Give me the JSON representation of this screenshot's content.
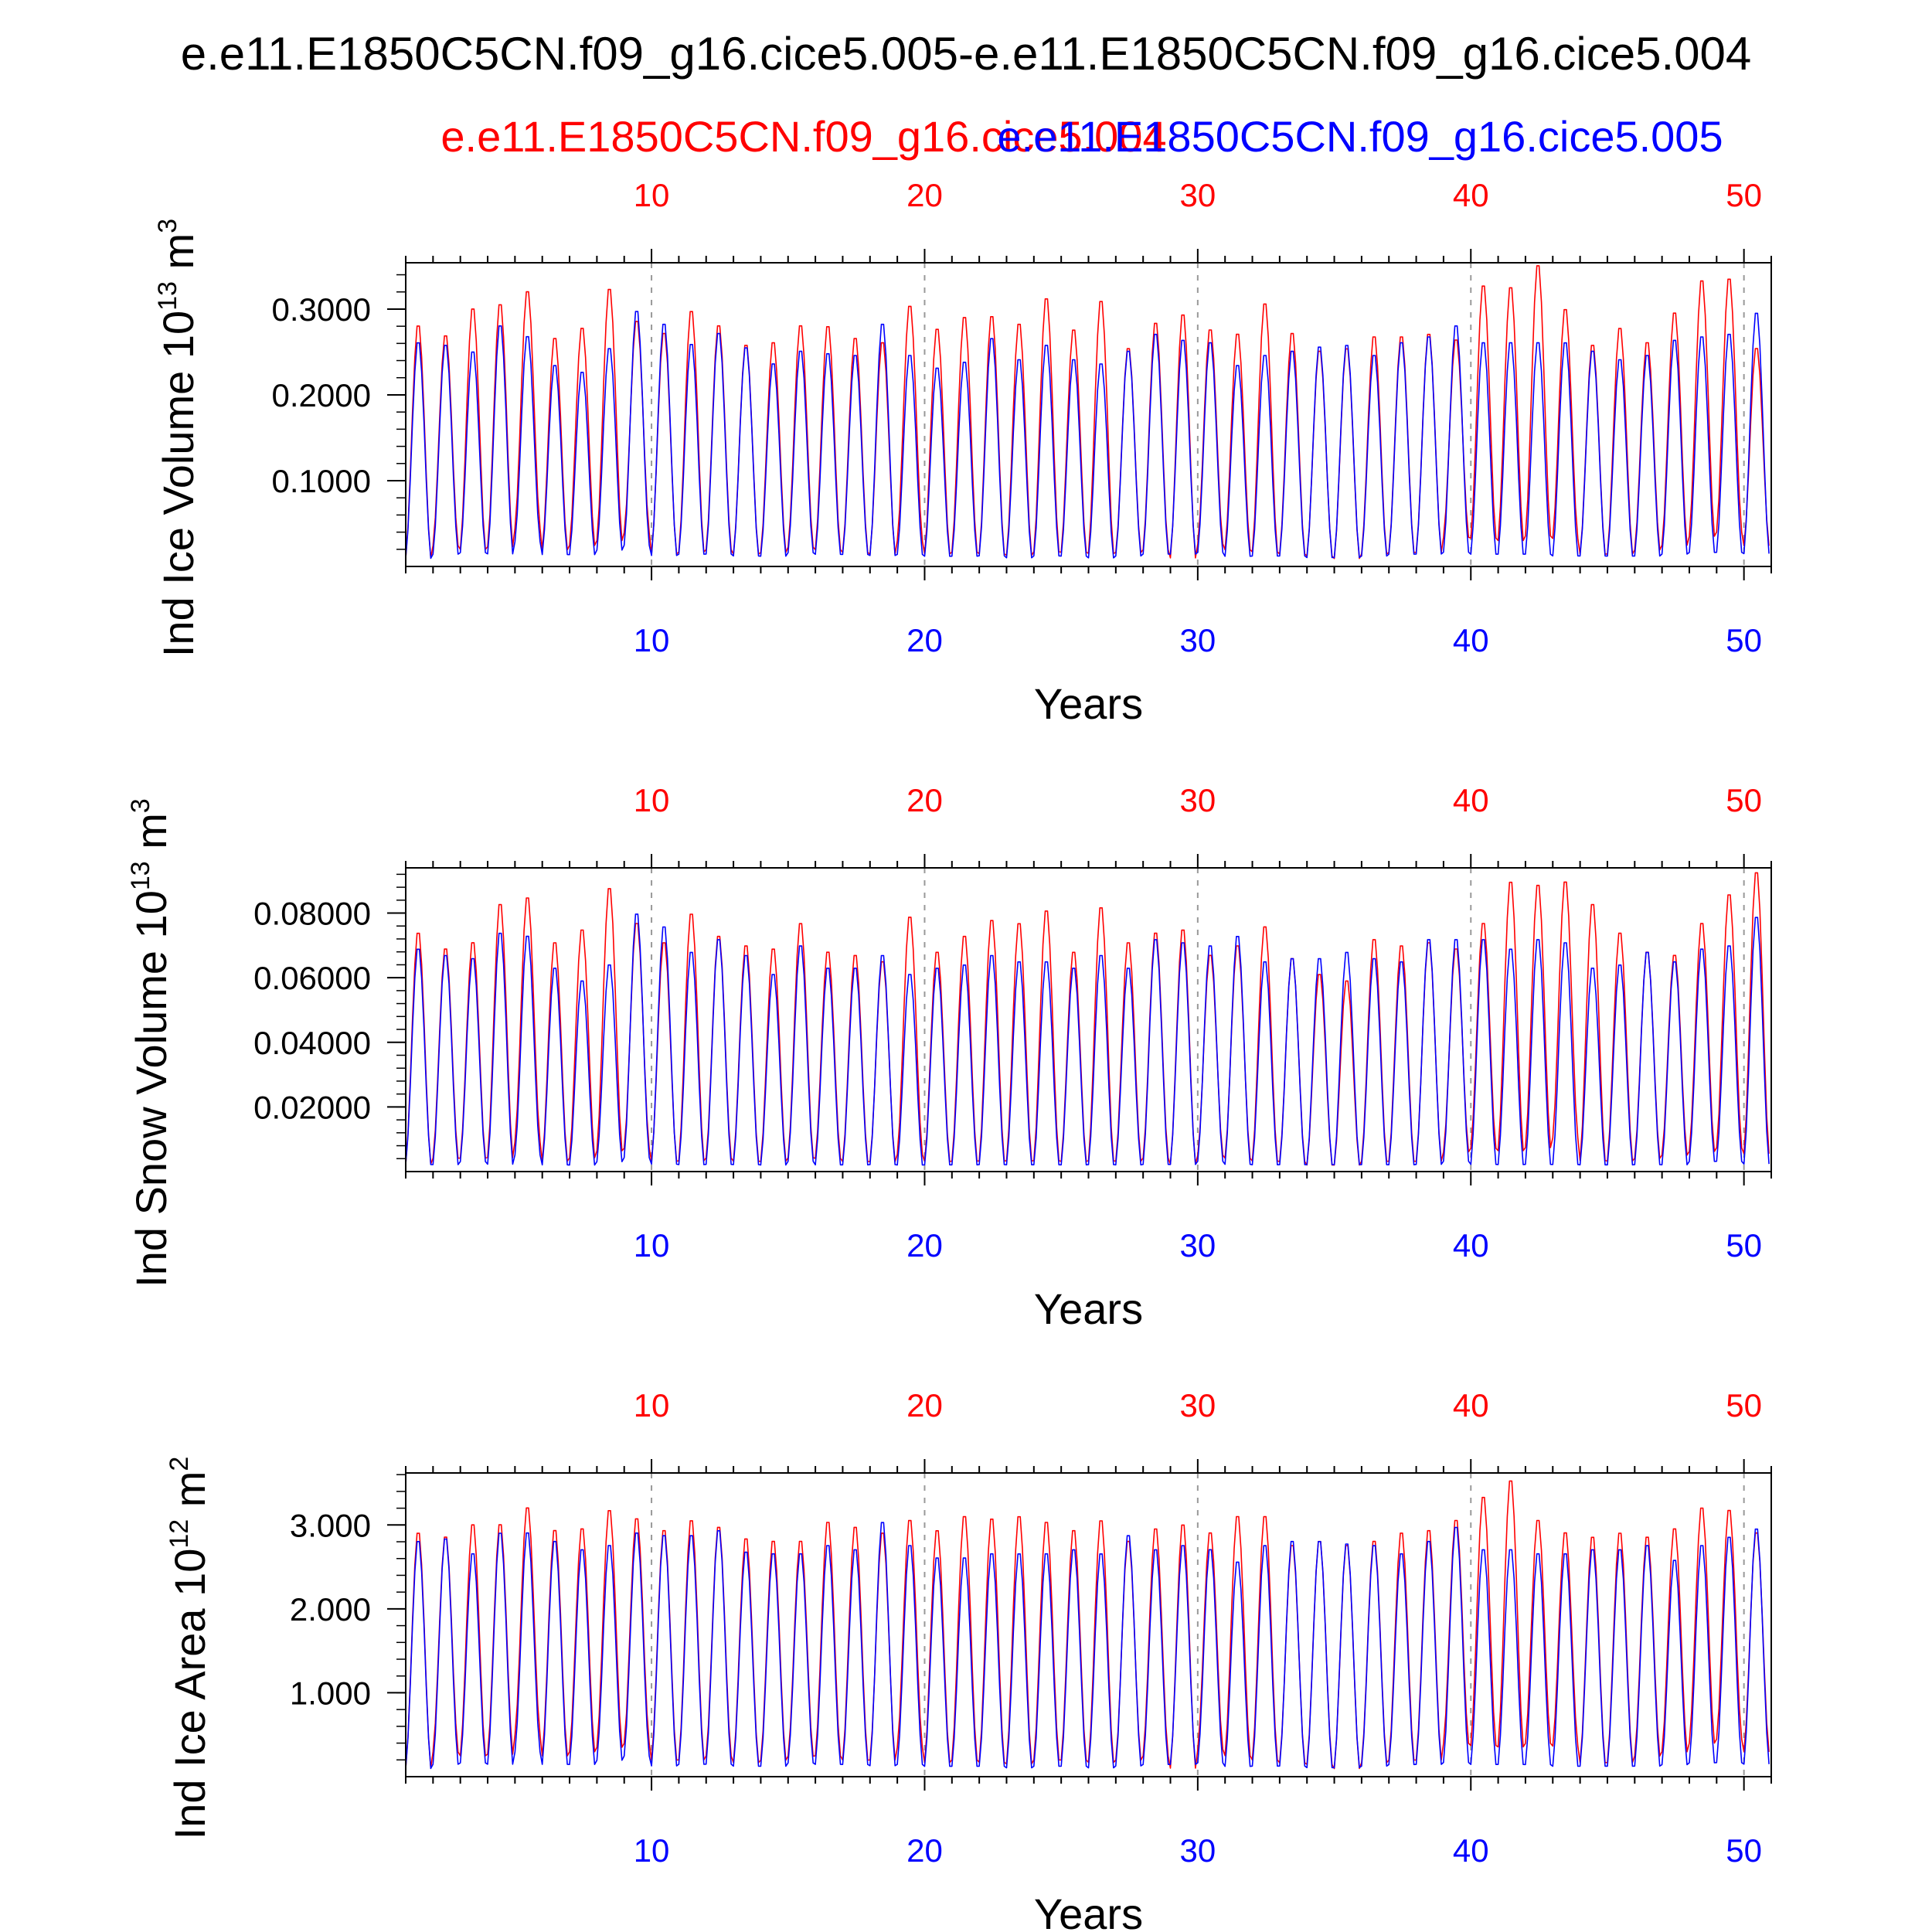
{
  "title": "e.e11.E1850C5CN.f09_g16.cice5.005-e.e11.E1850C5CN.f09_g16.cice5.004",
  "legend": {
    "red": "e.e11.E1850C5CN.f09_g16.cice5.004",
    "blue": "e.e11.E1850C5CN.f09_g16.cice5.005"
  },
  "colors": {
    "red": "#ff0000",
    "blue": "#0000ff",
    "axis": "#000000",
    "grid": "#999999"
  },
  "chart_data": [
    {
      "type": "line",
      "ylabel_main": "Ind Ice Volume 10",
      "ylabel_exp": "13",
      "ylabel_unit": " m",
      "ylabel_unit_exp": "3",
      "xlabel": "Years",
      "xlim": [
        1,
        51
      ],
      "ylim": [
        0,
        0.354
      ],
      "yticks": [
        0.1,
        0.2,
        0.3
      ],
      "ytick_labels": [
        "0.1000",
        "0.2000",
        "0.3000"
      ],
      "xticks": [
        10,
        20,
        30,
        40,
        50
      ],
      "xtick_labels": [
        "10",
        "20",
        "30",
        "40",
        "50"
      ],
      "series": [
        {
          "name": "e.e11.E1850C5CN.f09_g16.cice5.004",
          "color": "red",
          "annual_max": [
            0.285,
            0.273,
            0.305,
            0.31,
            0.325,
            0.27,
            0.282,
            0.328,
            0.29,
            0.276,
            0.302,
            0.285,
            0.262,
            0.265,
            0.285,
            0.284,
            0.27,
            0.265,
            0.308,
            0.281,
            0.295,
            0.296,
            0.287,
            0.317,
            0.28,
            0.314,
            0.258,
            0.288,
            0.298,
            0.28,
            0.275,
            0.311,
            0.276,
            0.255,
            0.258,
            0.272,
            0.272,
            0.275,
            0.268,
            0.332,
            0.33,
            0.356,
            0.304,
            0.262,
            0.282,
            0.265,
            0.3,
            0.338,
            0.34,
            0.258
          ],
          "annual_min": [
            0.005,
            0.02,
            0.015,
            0.018,
            0.04,
            0.015,
            0.02,
            0.025,
            0.035,
            0.01,
            0.012,
            0.015,
            0.01,
            0.012,
            0.018,
            0.015,
            0.012,
            0.01,
            0.025,
            0.01,
            0.012,
            0.01,
            0.008,
            0.012,
            0.012,
            0.01,
            0.012,
            0.015,
            0.005,
            0.022,
            0.015,
            0.012,
            0.01,
            0.008,
            0.005,
            0.01,
            0.012,
            0.012,
            0.03,
            0.028,
            0.025,
            0.03,
            0.028,
            0.01,
            0.01,
            0.015,
            0.02,
            0.03,
            0.035,
            0.02
          ]
        },
        {
          "name": "e.e11.E1850C5CN.f09_g16.cice5.005",
          "color": "blue",
          "annual_max": [
            0.265,
            0.262,
            0.254,
            0.285,
            0.272,
            0.238,
            0.23,
            0.258,
            0.302,
            0.287,
            0.263,
            0.276,
            0.259,
            0.24,
            0.255,
            0.252,
            0.25,
            0.287,
            0.25,
            0.235,
            0.242,
            0.27,
            0.245,
            0.262,
            0.245,
            0.24,
            0.255,
            0.275,
            0.268,
            0.265,
            0.238,
            0.25,
            0.255,
            0.26,
            0.262,
            0.25,
            0.265,
            0.272,
            0.285,
            0.265,
            0.265,
            0.265,
            0.265,
            0.255,
            0.245,
            0.25,
            0.268,
            0.272,
            0.275,
            0.3
          ],
          "annual_min": [
            0.005,
            0.01,
            0.012,
            0.01,
            0.025,
            0.01,
            0.01,
            0.015,
            0.02,
            0.008,
            0.01,
            0.01,
            0.008,
            0.008,
            0.012,
            0.01,
            0.01,
            0.008,
            0.01,
            0.008,
            0.008,
            0.008,
            0.006,
            0.008,
            0.008,
            0.006,
            0.008,
            0.01,
            0.01,
            0.012,
            0.008,
            0.008,
            0.008,
            0.006,
            0.006,
            0.008,
            0.01,
            0.01,
            0.012,
            0.01,
            0.01,
            0.01,
            0.008,
            0.008,
            0.008,
            0.008,
            0.01,
            0.012,
            0.012,
            0.01
          ]
        }
      ]
    },
    {
      "type": "line",
      "ylabel_main": "Ind Snow Volume 10",
      "ylabel_exp": "13",
      "ylabel_unit": " m",
      "ylabel_unit_exp": "3",
      "xlabel": "Years",
      "xlim": [
        1,
        51
      ],
      "ylim": [
        0,
        0.094
      ],
      "yticks": [
        0.02,
        0.04,
        0.06,
        0.08
      ],
      "ytick_labels": [
        "0.02000",
        "0.04000",
        "0.06000",
        "0.08000"
      ],
      "xticks": [
        10,
        20,
        30,
        40,
        50
      ],
      "xtick_labels": [
        "10",
        "20",
        "30",
        "40",
        "50"
      ],
      "series": [
        {
          "name": "e.e11.E1850C5CN.f09_g16.cice5.004",
          "color": "red",
          "annual_max": [
            0.075,
            0.07,
            0.072,
            0.084,
            0.086,
            0.072,
            0.076,
            0.089,
            0.078,
            0.072,
            0.081,
            0.074,
            0.071,
            0.07,
            0.078,
            0.069,
            0.068,
            0.066,
            0.08,
            0.069,
            0.074,
            0.079,
            0.078,
            0.082,
            0.069,
            0.083,
            0.072,
            0.075,
            0.076,
            0.068,
            0.071,
            0.077,
            0.067,
            0.062,
            0.06,
            0.073,
            0.071,
            0.072,
            0.07,
            0.078,
            0.091,
            0.09,
            0.091,
            0.084,
            0.075,
            0.069,
            0.068,
            0.078,
            0.087,
            0.094
          ],
          "annual_min": [
            0.001,
            0.003,
            0.003,
            0.003,
            0.008,
            0.002,
            0.003,
            0.005,
            0.006,
            0.002,
            0.002,
            0.003,
            0.002,
            0.002,
            0.003,
            0.003,
            0.002,
            0.002,
            0.004,
            0.002,
            0.002,
            0.002,
            0.002,
            0.002,
            0.002,
            0.002,
            0.002,
            0.003,
            0.001,
            0.004,
            0.003,
            0.002,
            0.002,
            0.001,
            0.001,
            0.002,
            0.002,
            0.002,
            0.005,
            0.006,
            0.005,
            0.006,
            0.009,
            0.002,
            0.002,
            0.003,
            0.004,
            0.005,
            0.006,
            0.004
          ]
        },
        {
          "name": "e.e11.E1850C5CN.f09_g16.cice5.005",
          "color": "blue",
          "annual_max": [
            0.07,
            0.068,
            0.067,
            0.075,
            0.074,
            0.064,
            0.06,
            0.065,
            0.081,
            0.077,
            0.069,
            0.073,
            0.068,
            0.062,
            0.071,
            0.064,
            0.064,
            0.068,
            0.062,
            0.064,
            0.065,
            0.068,
            0.066,
            0.066,
            0.064,
            0.068,
            0.064,
            0.073,
            0.072,
            0.071,
            0.074,
            0.066,
            0.067,
            0.067,
            0.069,
            0.067,
            0.066,
            0.073,
            0.073,
            0.073,
            0.07,
            0.073,
            0.072,
            0.064,
            0.065,
            0.069,
            0.066,
            0.07,
            0.071,
            0.08
          ],
          "annual_min": [
            0.001,
            0.001,
            0.002,
            0.001,
            0.004,
            0.001,
            0.001,
            0.002,
            0.003,
            0.001,
            0.001,
            0.001,
            0.001,
            0.001,
            0.002,
            0.001,
            0.001,
            0.001,
            0.001,
            0.001,
            0.001,
            0.001,
            0.001,
            0.001,
            0.001,
            0.001,
            0.001,
            0.001,
            0.001,
            0.002,
            0.001,
            0.001,
            0.001,
            0.001,
            0.001,
            0.001,
            0.001,
            0.001,
            0.002,
            0.001,
            0.001,
            0.001,
            0.001,
            0.001,
            0.001,
            0.001,
            0.001,
            0.002,
            0.002,
            0.001
          ]
        }
      ]
    },
    {
      "type": "line",
      "ylabel_main": "Ind Ice Area 10",
      "ylabel_exp": "12",
      "ylabel_unit": " m",
      "ylabel_unit_exp": "2",
      "xlabel": "Years",
      "xlim": [
        1,
        51
      ],
      "ylim": [
        0,
        3.62
      ],
      "yticks": [
        1.0,
        2.0,
        3.0
      ],
      "ytick_labels": [
        "1.000",
        "2.000",
        "3.000"
      ],
      "xticks": [
        10,
        20,
        30,
        40,
        50
      ],
      "xtick_labels": [
        "10",
        "20",
        "30",
        "40",
        "50"
      ],
      "series": [
        {
          "name": "e.e11.E1850C5CN.f09_g16.cice5.004",
          "color": "red",
          "annual_max": [
            2.95,
            2.9,
            3.05,
            3.05,
            3.25,
            2.98,
            3.0,
            3.22,
            3.12,
            2.98,
            3.1,
            3.02,
            2.88,
            2.85,
            2.85,
            3.08,
            3.02,
            2.95,
            3.1,
            2.98,
            3.15,
            3.12,
            3.15,
            3.08,
            2.98,
            3.1,
            2.85,
            3.0,
            3.05,
            2.95,
            3.15,
            3.15,
            2.8,
            2.85,
            2.8,
            2.85,
            2.95,
            2.98,
            3.1,
            3.38,
            3.58,
            3.1,
            2.95,
            2.9,
            2.95,
            2.9,
            3.0,
            3.25,
            3.22,
            2.95
          ],
          "annual_min": [
            0.05,
            0.25,
            0.2,
            0.22,
            0.45,
            0.2,
            0.25,
            0.3,
            0.35,
            0.15,
            0.15,
            0.2,
            0.12,
            0.15,
            0.2,
            0.2,
            0.15,
            0.15,
            0.3,
            0.12,
            0.15,
            0.12,
            0.1,
            0.15,
            0.15,
            0.12,
            0.15,
            0.2,
            0.05,
            0.28,
            0.2,
            0.15,
            0.12,
            0.1,
            0.05,
            0.12,
            0.15,
            0.15,
            0.35,
            0.32,
            0.3,
            0.35,
            0.32,
            0.12,
            0.12,
            0.2,
            0.25,
            0.35,
            0.4,
            0.25
          ]
        },
        {
          "name": "e.e11.E1850C5CN.f09_g16.cice5.005",
          "color": "blue",
          "annual_max": [
            2.85,
            2.88,
            2.7,
            2.95,
            2.95,
            2.85,
            2.75,
            2.8,
            2.95,
            2.92,
            2.92,
            2.98,
            2.72,
            2.7,
            2.7,
            2.8,
            2.75,
            3.08,
            2.8,
            2.65,
            2.65,
            2.7,
            2.7,
            2.7,
            2.75,
            2.7,
            2.92,
            2.75,
            2.8,
            2.75,
            2.6,
            2.8,
            2.85,
            2.85,
            2.82,
            2.8,
            2.7,
            2.85,
            3.02,
            2.75,
            2.75,
            2.7,
            2.7,
            2.75,
            2.75,
            2.8,
            2.62,
            2.8,
            2.9,
            3.0
          ],
          "annual_min": [
            0.05,
            0.1,
            0.12,
            0.1,
            0.25,
            0.1,
            0.1,
            0.15,
            0.2,
            0.08,
            0.1,
            0.1,
            0.08,
            0.08,
            0.12,
            0.1,
            0.1,
            0.08,
            0.1,
            0.08,
            0.08,
            0.08,
            0.06,
            0.08,
            0.08,
            0.06,
            0.08,
            0.1,
            0.1,
            0.12,
            0.08,
            0.08,
            0.08,
            0.06,
            0.06,
            0.08,
            0.1,
            0.1,
            0.12,
            0.1,
            0.1,
            0.1,
            0.08,
            0.08,
            0.08,
            0.08,
            0.1,
            0.12,
            0.12,
            0.1
          ]
        }
      ]
    }
  ]
}
